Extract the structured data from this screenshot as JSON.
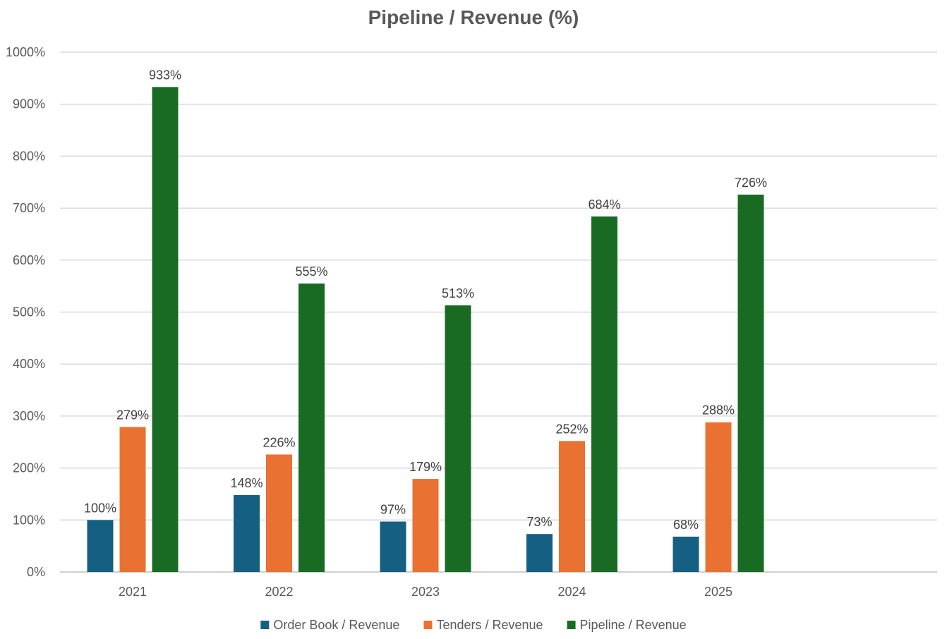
{
  "chart_data": {
    "type": "bar",
    "title": "Pipeline / Revenue (%)",
    "xlabel": "",
    "ylabel": "",
    "ylim": [
      0,
      1000
    ],
    "y_tick_step": 100,
    "y_tick_suffix": "%",
    "grid": true,
    "legend_position": "bottom",
    "categories": [
      "2021",
      "2022",
      "2023",
      "2024",
      "2025"
    ],
    "series": [
      {
        "name": "Order Book / Revenue",
        "color": "#156082",
        "values": [
          100,
          148,
          97,
          73,
          68
        ],
        "labels": [
          "100%",
          "148%",
          "97%",
          "73%",
          "68%"
        ]
      },
      {
        "name": "Tenders / Revenue",
        "color": "#E97132",
        "values": [
          279,
          226,
          179,
          252,
          288
        ],
        "labels": [
          "279%",
          "226%",
          "179%",
          "252%",
          "288%"
        ]
      },
      {
        "name": "Pipeline / Revenue",
        "color": "#196B24",
        "values": [
          933,
          555,
          513,
          684,
          726
        ],
        "labels": [
          "933%",
          "555%",
          "513%",
          "684%",
          "726%"
        ]
      }
    ]
  }
}
